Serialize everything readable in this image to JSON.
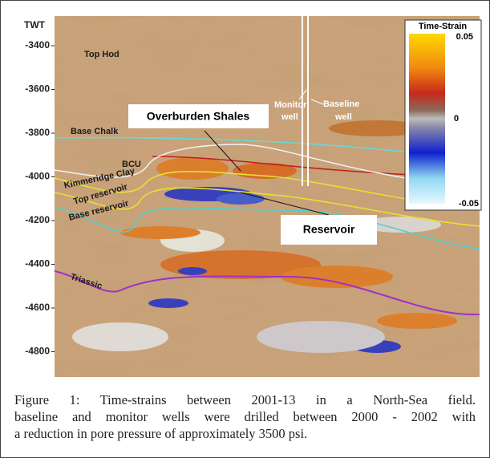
{
  "figure": {
    "axis_label": "TWT",
    "yticks": [
      -3400,
      -3600,
      -3800,
      -4000,
      -4200,
      -4400,
      -4600,
      -4800
    ],
    "labels": {
      "top_hod": "Top Hod",
      "monitor_well": [
        "Monitor",
        "well"
      ],
      "baseline_well": [
        "Baseline",
        "well"
      ],
      "overburden": "Overburden Shales",
      "base_chalk": "Base Chalk",
      "bcu": "BCU",
      "kimmeridge": "Kimmeridge Clay",
      "top_reservoir": "Top reservoir",
      "base_reservoir": "Base reservoir",
      "reservoir": "Reservoir",
      "triassic": "Triassic"
    },
    "colorbar": {
      "title": "Time-Strain",
      "max": 0.05,
      "mid": 0,
      "min": -0.05
    }
  },
  "caption": [
    "Figure 1: Time-strains between 2001-13 in a North-Sea field.",
    "baseline and monitor wells were drilled between 2000 - 2002 with",
    "a reduction in pore pressure of  approximately 3500 psi."
  ]
}
